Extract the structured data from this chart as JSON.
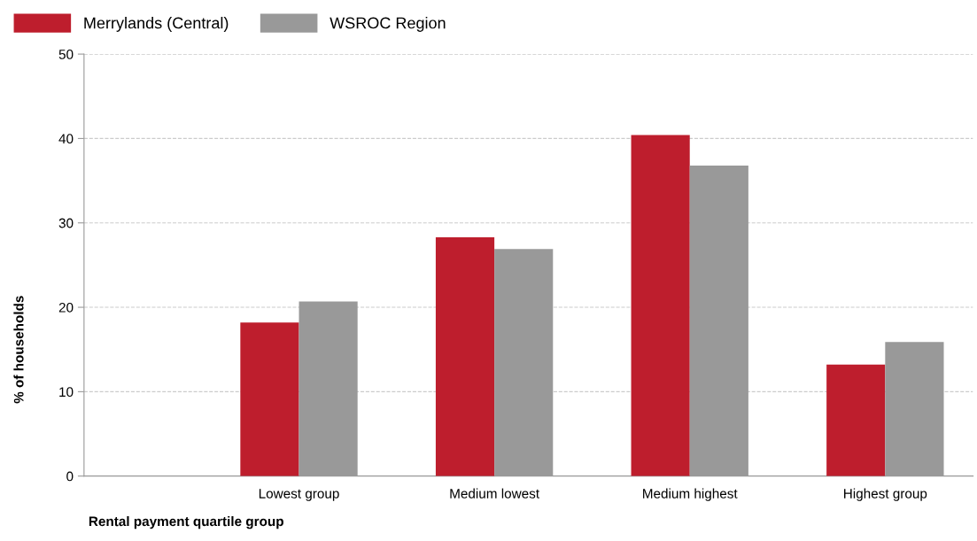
{
  "chart_data": {
    "type": "bar",
    "xlabel": "Rental payment quartile group",
    "ylabel": "% of households",
    "categories": [
      "Lowest group",
      "Medium lowest",
      "Medium highest",
      "Highest group"
    ],
    "series": [
      {
        "name": "Merrylands (Central)",
        "color": "#be1e2d",
        "values": [
          18.2,
          28.3,
          40.4,
          13.2
        ]
      },
      {
        "name": "WSROC Region",
        "color": "#999999",
        "values": [
          20.7,
          26.9,
          36.8,
          15.9
        ]
      }
    ],
    "ylim": [
      0,
      50
    ],
    "yticks": [
      0,
      10,
      20,
      30,
      40,
      50
    ],
    "grid": "y",
    "legend": "top left"
  }
}
